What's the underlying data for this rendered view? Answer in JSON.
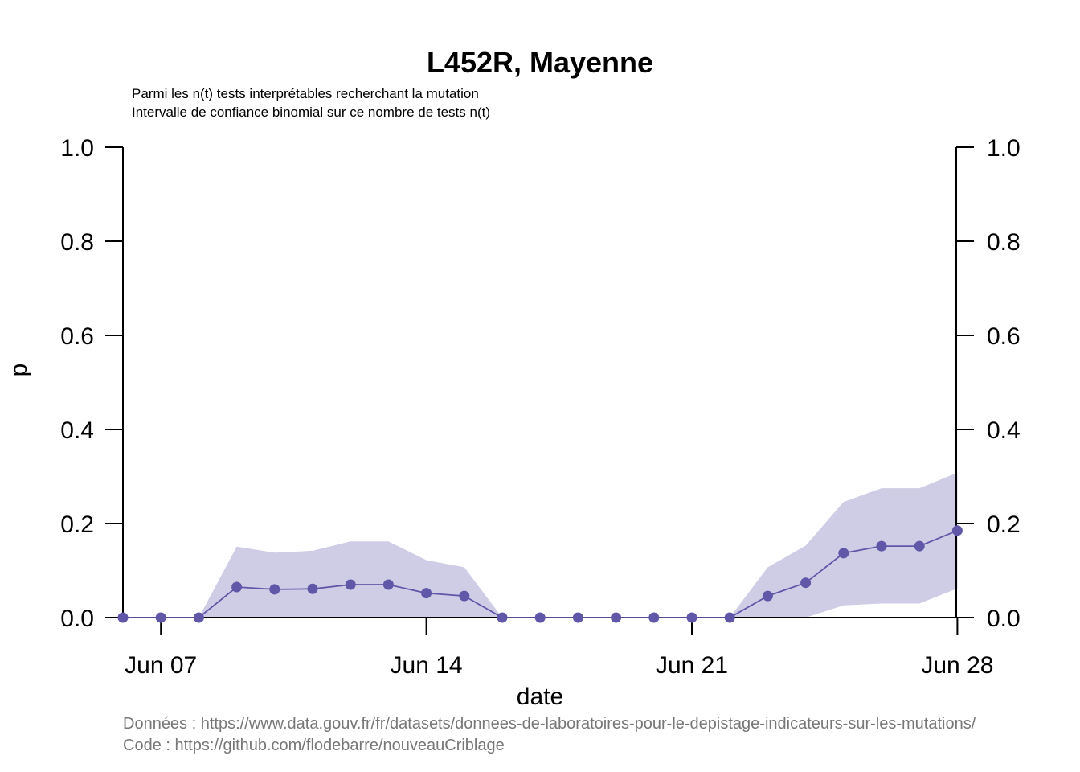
{
  "chart_data": {
    "type": "line",
    "title": "L452R, Mayenne",
    "subtitle_lines": [
      "Parmi les n(t) tests interprétables recherchant la mutation",
      "Intervalle de confiance binomial sur ce nombre de tests n(t)"
    ],
    "xlabel": "date",
    "ylabel": "p",
    "x": [
      "Jun 06",
      "Jun 07",
      "Jun 08",
      "Jun 09",
      "Jun 10",
      "Jun 11",
      "Jun 12",
      "Jun 13",
      "Jun 14",
      "Jun 15",
      "Jun 16",
      "Jun 17",
      "Jun 18",
      "Jun 19",
      "Jun 20",
      "Jun 21",
      "Jun 22",
      "Jun 23",
      "Jun 24",
      "Jun 25",
      "Jun 26",
      "Jun 27",
      "Jun 28"
    ],
    "x_tick_labels": [
      "Jun 07",
      "Jun 14",
      "Jun 21",
      "Jun 28"
    ],
    "y_ticks": [
      "0.0",
      "0.2",
      "0.4",
      "0.6",
      "0.8",
      "1.0"
    ],
    "ylim": [
      0,
      1
    ],
    "series": [
      {
        "values": [
          0,
          0,
          0,
          0.065,
          0.06,
          0.061,
          0.07,
          0.07,
          0.052,
          0.046,
          0,
          0,
          0,
          0,
          0,
          0,
          0,
          0.046,
          0.074,
          0.137,
          0.152,
          0.152,
          0.185
        ],
        "ci_lower": [
          0,
          0,
          0,
          0,
          0,
          0,
          0,
          0,
          0,
          0,
          0,
          0,
          0,
          0,
          0,
          0,
          0,
          0,
          0,
          0.026,
          0.03,
          0.03,
          0.062
        ],
        "ci_upper": [
          0,
          0,
          0,
          0.151,
          0.138,
          0.142,
          0.162,
          0.162,
          0.122,
          0.107,
          0,
          0,
          0,
          0,
          0,
          0,
          0,
          0.107,
          0.153,
          0.246,
          0.275,
          0.275,
          0.308
        ]
      }
    ],
    "colors": {
      "line": "#6157a9",
      "band": "#cfcde5"
    },
    "grid": false,
    "right_axis": true
  },
  "caption": {
    "data_line": "Données : https://www.data.gouv.fr/fr/datasets/donnees-de-laboratoires-pour-le-depistage-indicateurs-sur-les-mutations/",
    "code_line": "Code : https://github.com/flodebarre/nouveauCriblage"
  }
}
